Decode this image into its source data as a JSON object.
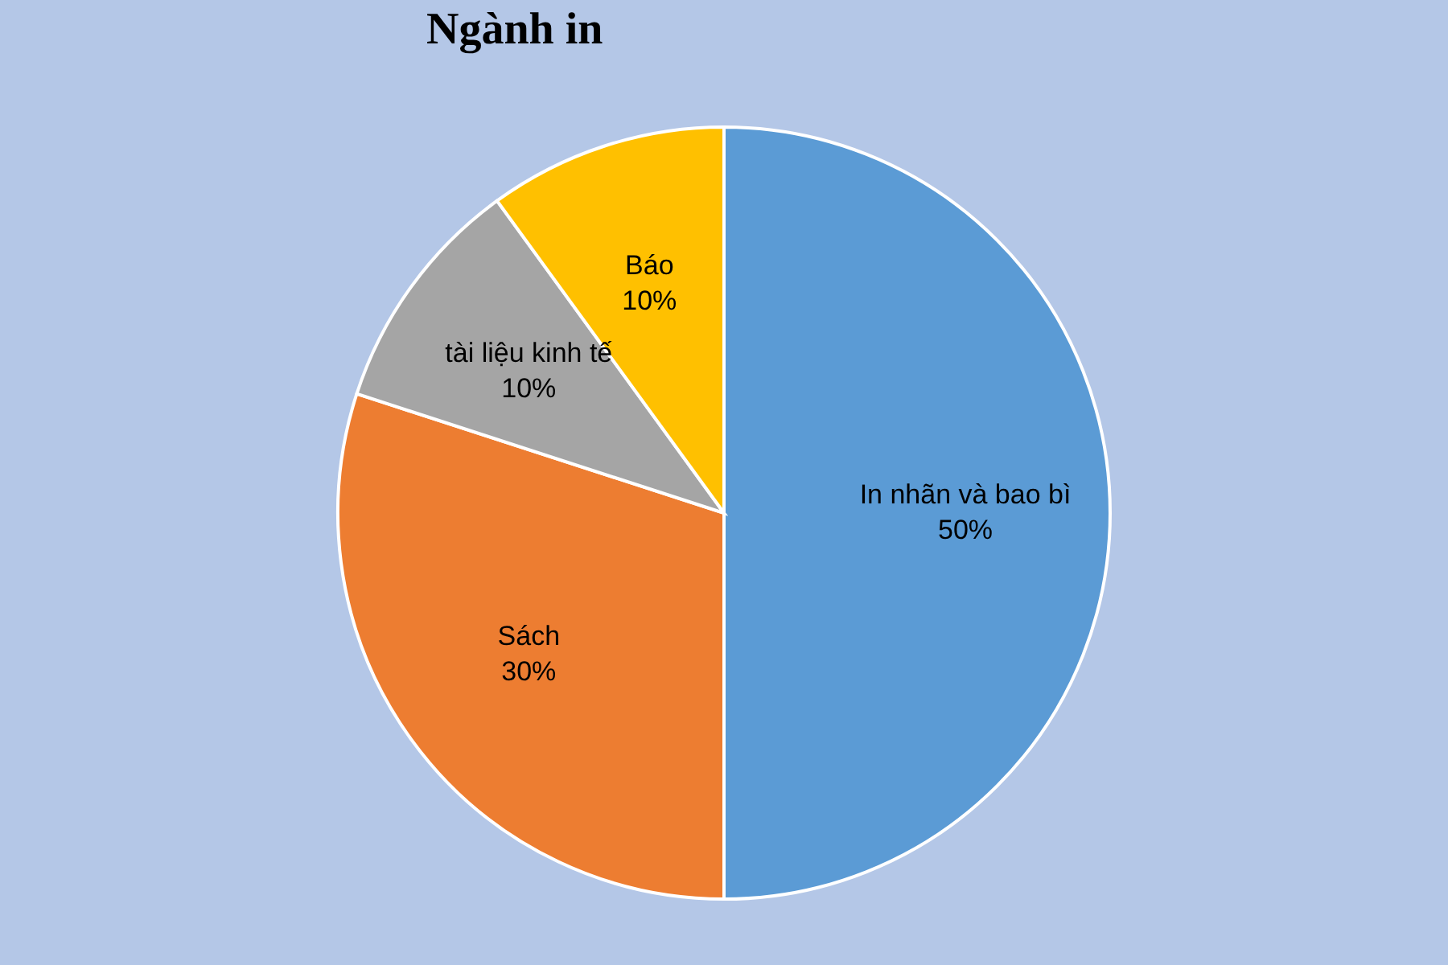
{
  "chart_data": {
    "type": "pie",
    "title": "Ngành in",
    "categories": [
      "In nhãn và bao bì",
      "Sách",
      "tài liệu kinh tế",
      "Báo"
    ],
    "values": [
      50,
      30,
      10,
      10
    ],
    "colors": [
      "#5b9bd5",
      "#ed7d31",
      "#a5a5a5",
      "#ffc000"
    ],
    "value_labels": [
      "50%",
      "30%",
      "10%",
      "10%"
    ],
    "legend": false
  }
}
